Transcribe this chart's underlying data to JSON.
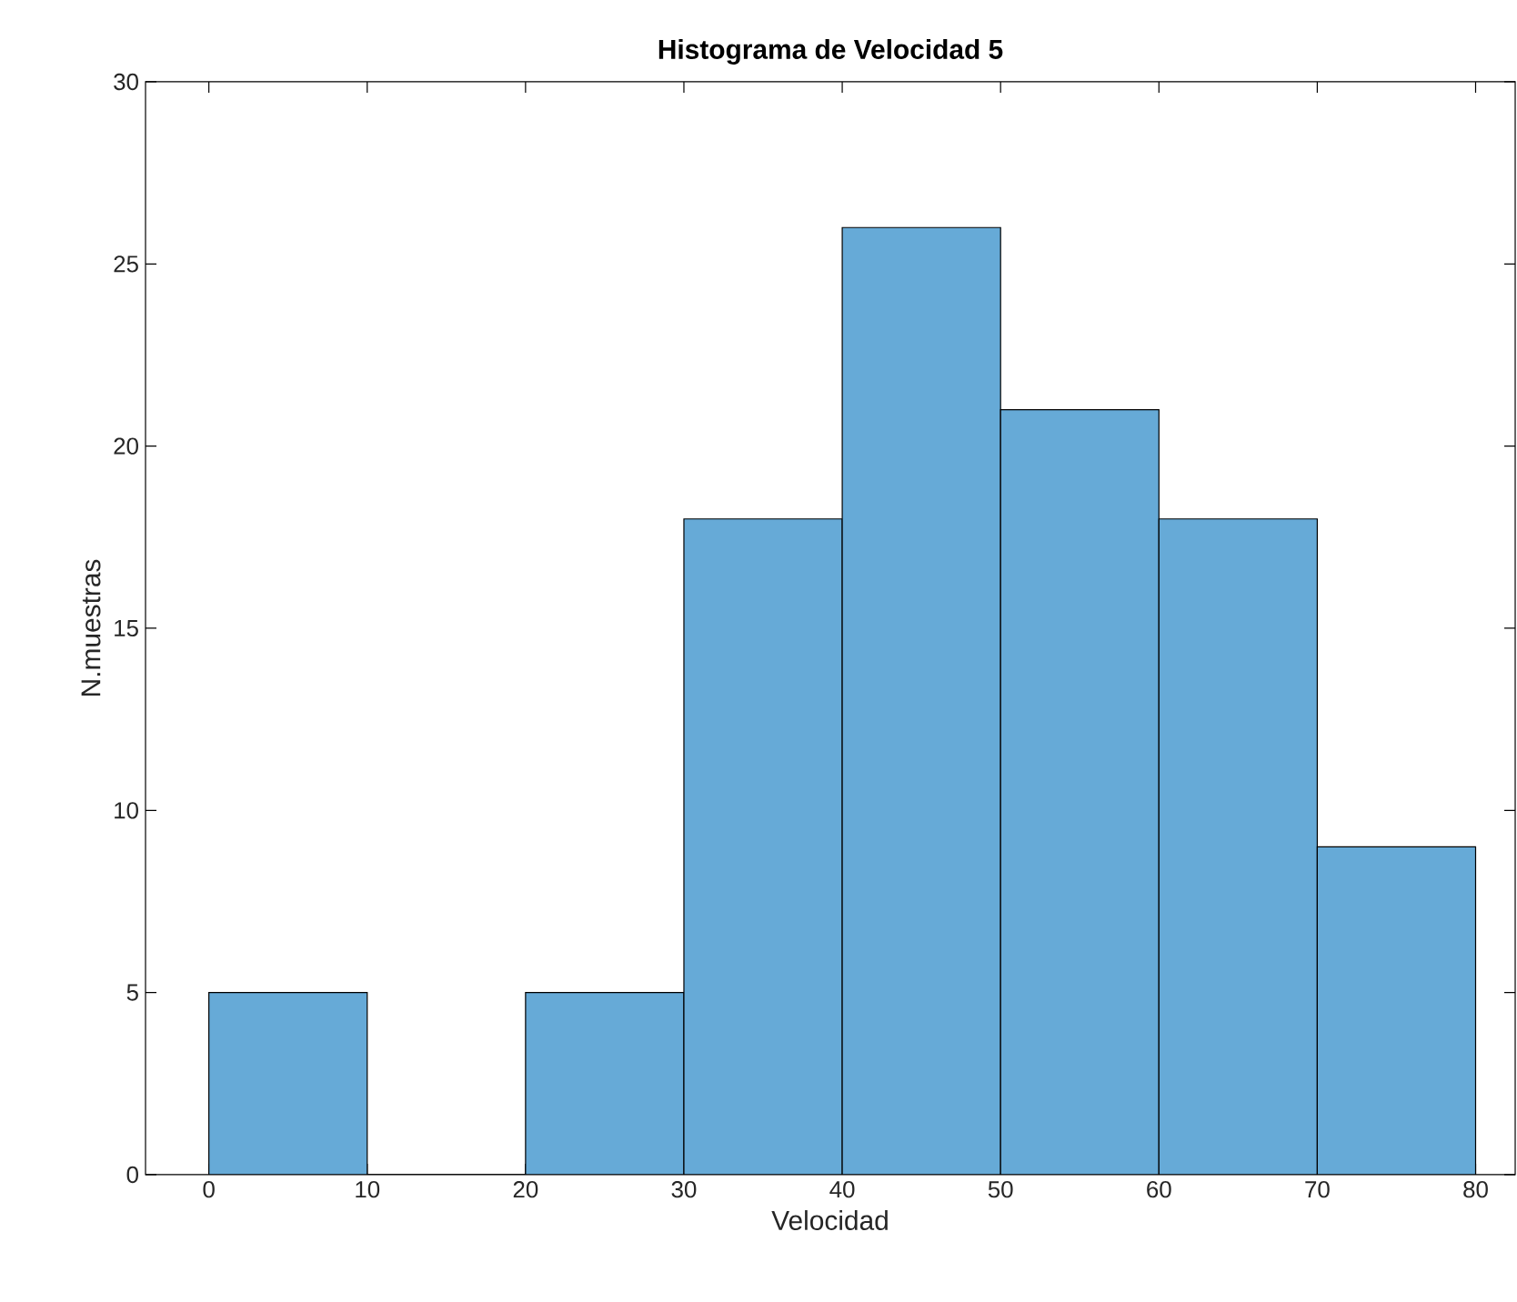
{
  "chart_data": {
    "type": "histogram",
    "title": "Histograma de Velocidad 5",
    "xlabel": "Velocidad",
    "ylabel": "N.muestras",
    "bins": [
      0,
      10,
      20,
      30,
      40,
      50,
      60,
      70,
      80
    ],
    "values": [
      5,
      0,
      5,
      18,
      26,
      21,
      18,
      9
    ],
    "color": "#66aad7",
    "xlim": [
      -4,
      82.5
    ],
    "ylim": [
      0,
      30
    ],
    "xticks": [
      0,
      10,
      20,
      30,
      40,
      50,
      60,
      70,
      80
    ],
    "yticks": [
      0,
      5,
      10,
      15,
      20,
      25,
      30
    ],
    "grid": false
  }
}
